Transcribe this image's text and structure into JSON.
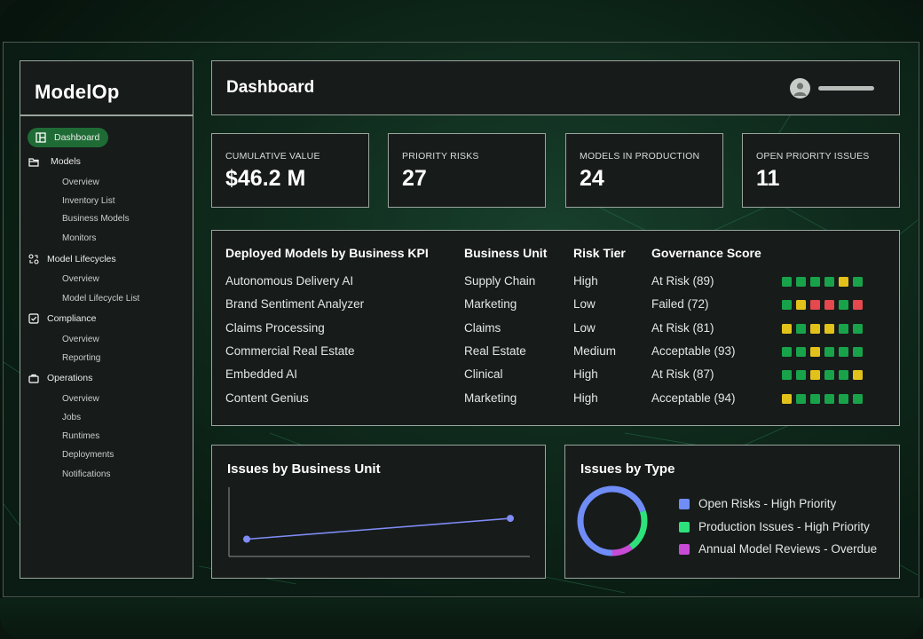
{
  "sidebar": {
    "brand": "ModelOp",
    "dashboard": "Dashboard",
    "models": {
      "label": "Models",
      "items": [
        "Overview",
        "Inventory List",
        "Business Models",
        "Monitors"
      ]
    },
    "lifecycles": {
      "label": "Model Lifecycles",
      "items": [
        "Overview",
        "Model Lifecycle List"
      ]
    },
    "compliance": {
      "label": "Compliance",
      "items": [
        "Overview",
        "Reporting"
      ]
    },
    "operations": {
      "label": "Operations",
      "items": [
        "Overview",
        "Jobs",
        "Runtimes",
        "Deployments",
        "Notifications"
      ]
    }
  },
  "header": {
    "title": "Dashboard"
  },
  "kpis": [
    {
      "label": "CUMULATIVE VALUE",
      "value": "$46.2 M"
    },
    {
      "label": "PRIORITY RISKS",
      "value": "27"
    },
    {
      "label": "MODELS IN PRODUCTION",
      "value": "24"
    },
    {
      "label": "OPEN PRIORITY ISSUES",
      "value": "11"
    }
  ],
  "table": {
    "headers": [
      "Deployed Models by Business KPI",
      "Business Unit",
      "Risk Tier",
      "Governance Score"
    ],
    "rows": [
      {
        "model": "Autonomous Delivery AI",
        "unit": "Supply Chain",
        "tier": "High",
        "score": "At Risk (89)",
        "dots": [
          "g",
          "g",
          "g",
          "g",
          "y",
          "g"
        ]
      },
      {
        "model": "Brand Sentiment Analyzer",
        "unit": "Marketing",
        "tier": "Low",
        "score": "Failed (72)",
        "dots": [
          "g",
          "y",
          "r",
          "r",
          "g",
          "r"
        ]
      },
      {
        "model": "Claims Processing",
        "unit": "Claims",
        "tier": "Low",
        "score": "At Risk (81)",
        "dots": [
          "y",
          "g",
          "y",
          "y",
          "g",
          "g"
        ]
      },
      {
        "model": "Commercial Real Estate",
        "unit": "Real Estate",
        "tier": "Medium",
        "score": "Acceptable (93)",
        "dots": [
          "g",
          "g",
          "y",
          "g",
          "g",
          "g"
        ]
      },
      {
        "model": "Embedded AI",
        "unit": "Clinical",
        "tier": "High",
        "score": "At Risk (87)",
        "dots": [
          "g",
          "g",
          "y",
          "g",
          "g",
          "y"
        ]
      },
      {
        "model": "Content Genius",
        "unit": "Marketing",
        "tier": "High",
        "score": "Acceptable (94)",
        "dots": [
          "y",
          "g",
          "g",
          "g",
          "g",
          "g"
        ]
      }
    ]
  },
  "colors": {
    "g": "#18a34a",
    "y": "#e2c21a",
    "r": "#e5484d",
    "accent": "#1f6b35",
    "line": "#7f8cf5"
  },
  "charts": {
    "issues_by_unit": {
      "title": "Issues by Business Unit"
    },
    "issues_by_type": {
      "title": "Issues by Type",
      "legend": [
        {
          "label": "Open Risks - High Priority",
          "color": "#6f8cf7"
        },
        {
          "label": "Production Issues - High Priority",
          "color": "#2de27b"
        },
        {
          "label": "Annual Model Reviews - Overdue",
          "color": "#c84bd6"
        }
      ]
    }
  },
  "chart_data": [
    {
      "type": "line",
      "title": "Issues by Business Unit",
      "x": [
        0,
        1
      ],
      "y": [
        0.25,
        0.55
      ],
      "ylim": [
        0,
        1
      ],
      "xlabel": "",
      "ylabel": ""
    },
    {
      "type": "pie",
      "title": "Issues by Type",
      "labels": [
        "Open Risks - High Priority",
        "Production Issues - High Priority",
        "Annual Model Reviews - Overdue"
      ],
      "values": [
        70,
        20,
        10
      ]
    }
  ]
}
